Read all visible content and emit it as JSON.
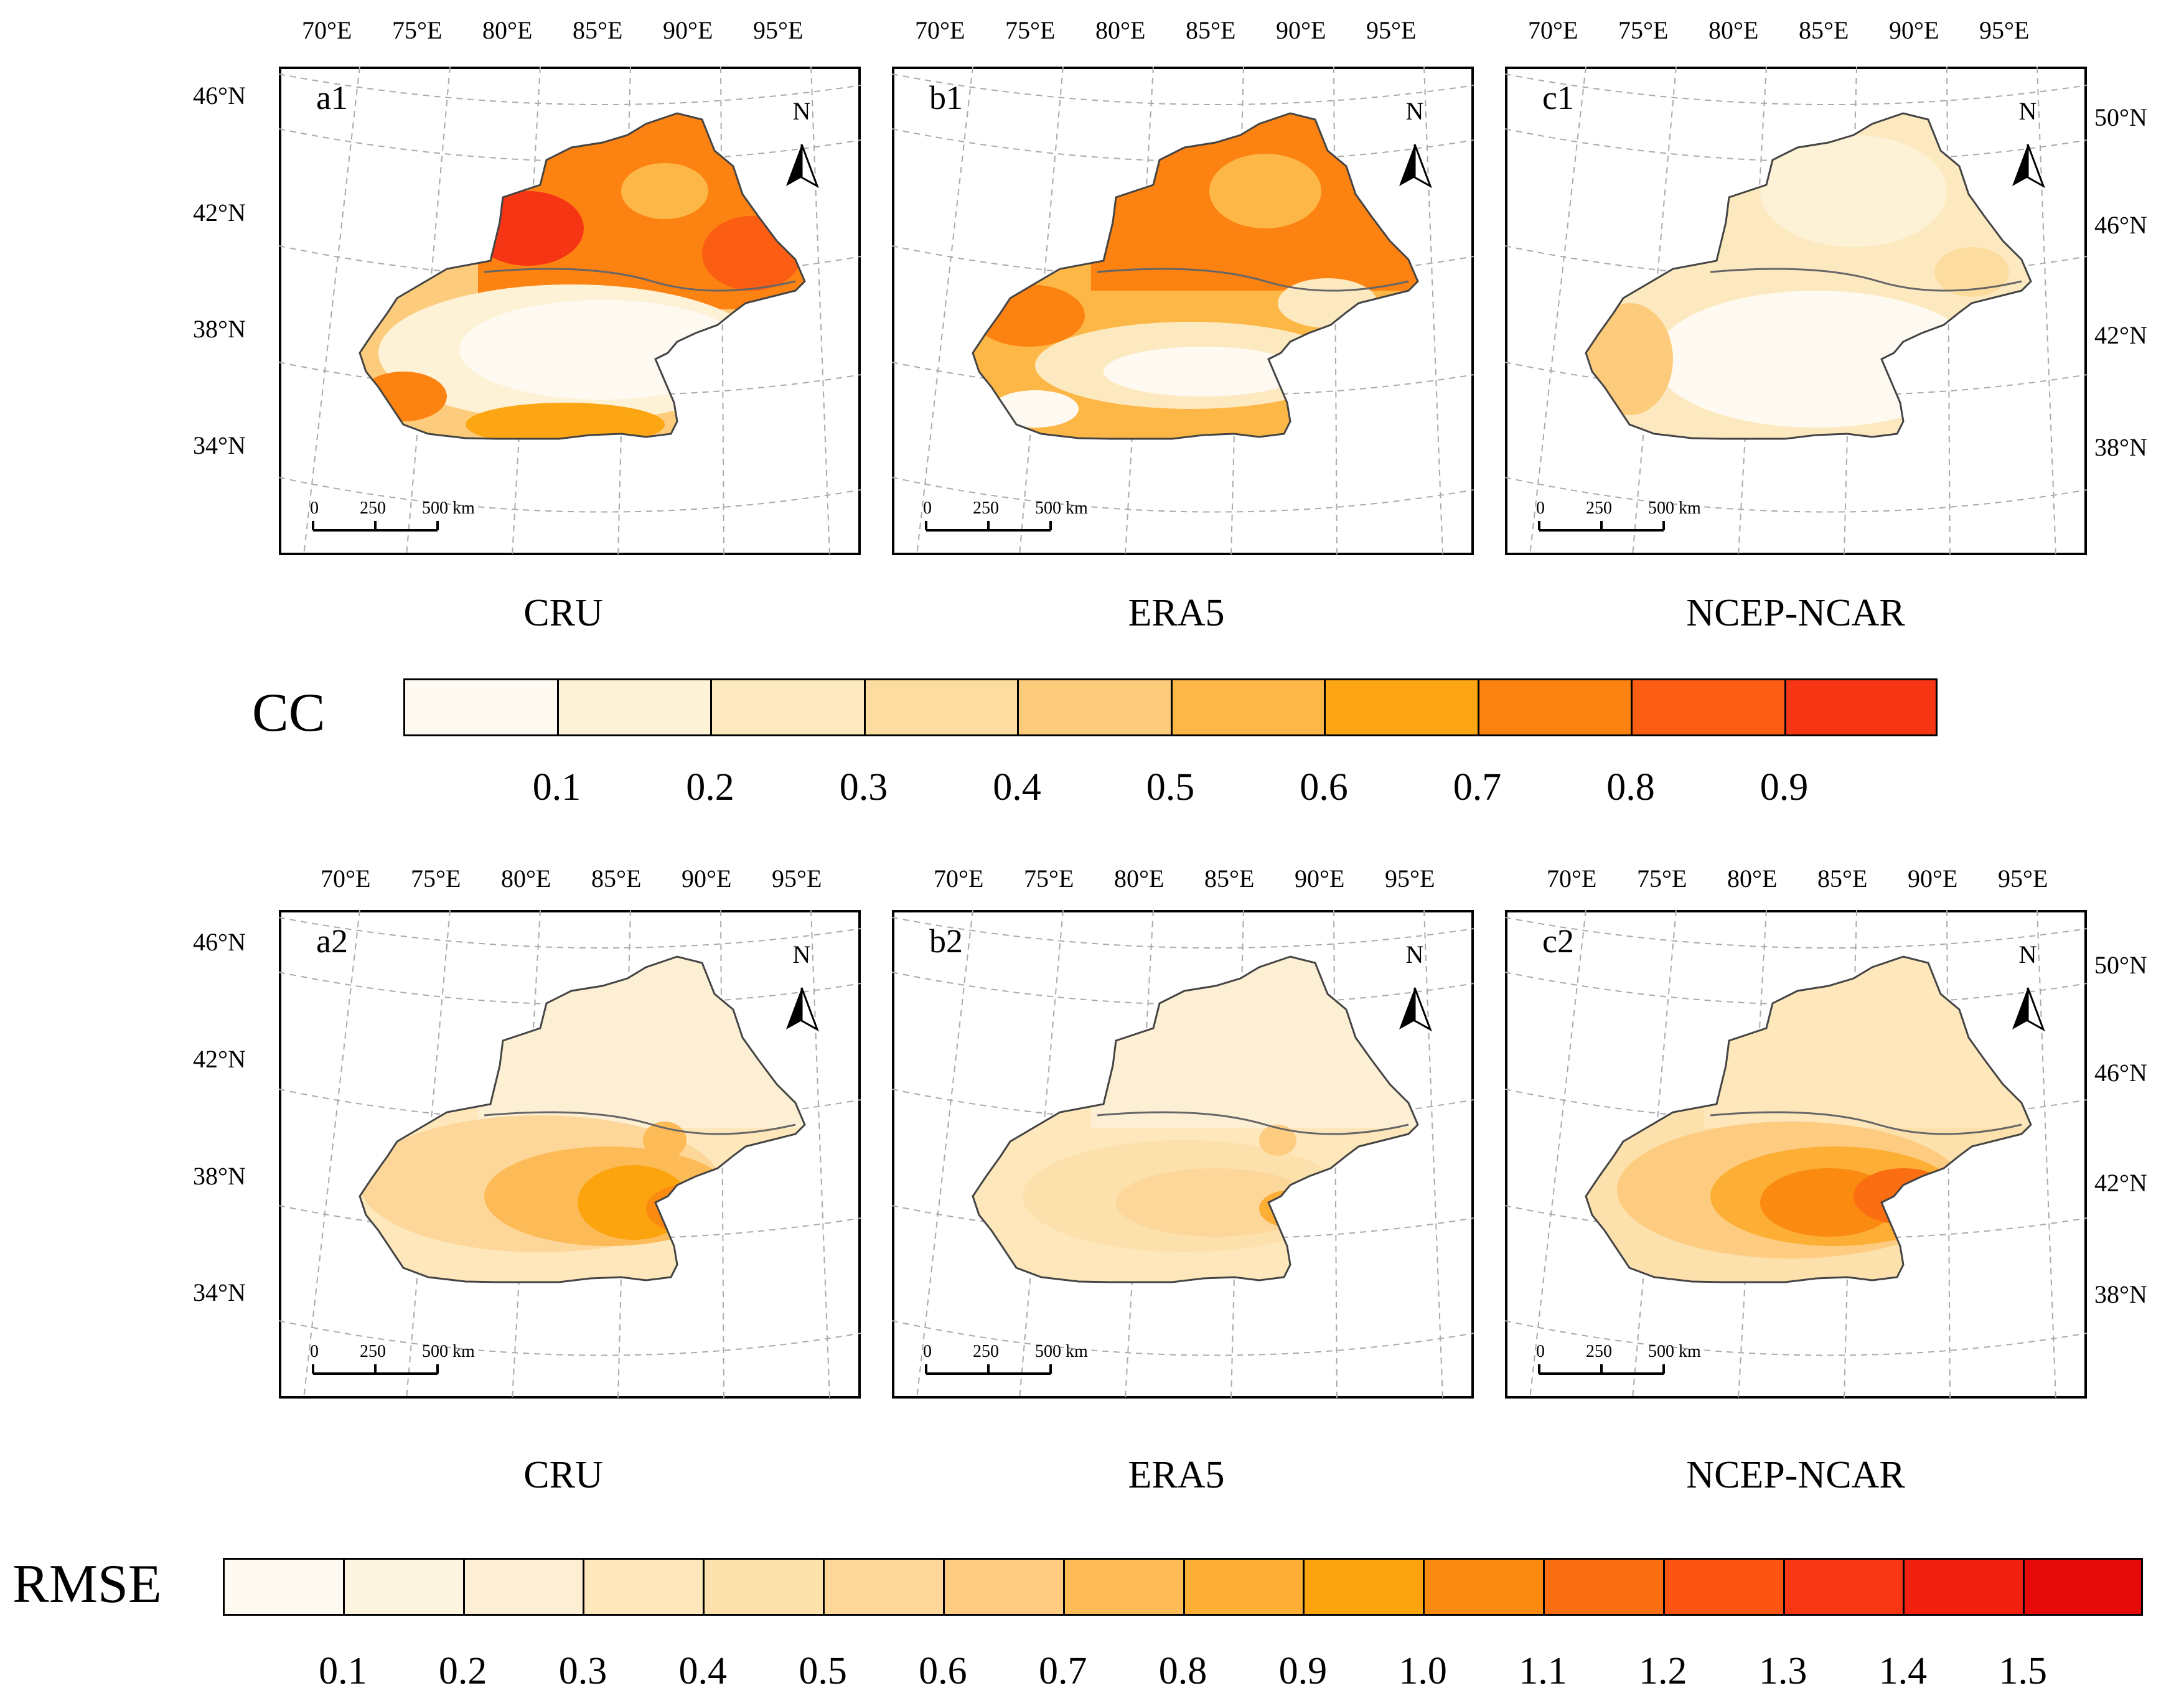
{
  "figure": {
    "colors": {
      "cc": [
        "#fefaf2",
        "#fdf1d6",
        "#fde9bf",
        "#fddca0",
        "#fdcb7c",
        "#fdb746",
        "#fda613",
        "#fc8211",
        "#fb5d13",
        "#f63514"
      ],
      "rmse": [
        "#fefaf2",
        "#fdf4e0",
        "#fdefd4",
        "#fde7bb",
        "#fde1ad",
        "#fdd79a",
        "#fdcc80",
        "#fdbb58",
        "#fdae35",
        "#fca40d",
        "#fb8b10",
        "#fb6e12",
        "#fb5413",
        "#f83714",
        "#f2200f",
        "#e60b08"
      ],
      "outline": "#444444",
      "grid": "#aaaaaa"
    },
    "rows": [
      {
        "panels": [
          {
            "id": "a1",
            "caption": "CRU"
          },
          {
            "id": "b1",
            "caption": "ERA5"
          },
          {
            "id": "c1",
            "caption": "NCEP-NCAR"
          }
        ],
        "colorbar": {
          "title": "CC",
          "ticks": [
            "0.1",
            "0.2",
            "0.3",
            "0.4",
            "0.5",
            "0.6",
            "0.7",
            "0.8",
            "0.9"
          ]
        }
      },
      {
        "panels": [
          {
            "id": "a2",
            "caption": "CRU"
          },
          {
            "id": "b2",
            "caption": "ERA5"
          },
          {
            "id": "c2",
            "caption": "NCEP-NCAR"
          }
        ],
        "colorbar": {
          "title": "RMSE",
          "ticks": [
            "0.1",
            "0.2",
            "0.3",
            "0.4",
            "0.5",
            "0.6",
            "0.7",
            "0.8",
            "0.9",
            "1.0",
            "1.1",
            "1.2",
            "1.3",
            "1.4",
            "1.5"
          ]
        }
      }
    ],
    "lon_labels": [
      "70°E",
      "75°E",
      "80°E",
      "85°E",
      "90°E",
      "95°E"
    ],
    "lat_labels_left": [
      "46°N",
      "42°N",
      "38°N",
      "34°N"
    ],
    "lat_labels_right": [
      "50°N",
      "46°N",
      "42°N",
      "38°N"
    ],
    "north_arrow": "N",
    "scale_bar": {
      "ticks": [
        "0",
        "250",
        "500 km"
      ]
    }
  }
}
